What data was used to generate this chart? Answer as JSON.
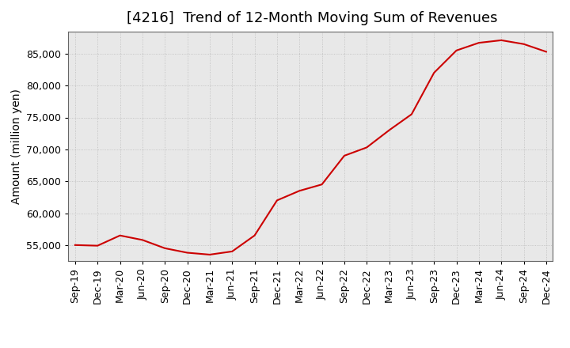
{
  "title": "[4216]  Trend of 12-Month Moving Sum of Revenues",
  "ylabel": "Amount (million yen)",
  "line_color": "#cc0000",
  "background_color": "#ffffff",
  "plot_bg_color": "#e8e8e8",
  "grid_color": "#bbbbbb",
  "x_labels": [
    "Sep-19",
    "Dec-19",
    "Mar-20",
    "Jun-20",
    "Sep-20",
    "Dec-20",
    "Mar-21",
    "Jun-21",
    "Sep-21",
    "Dec-21",
    "Mar-22",
    "Jun-22",
    "Sep-22",
    "Dec-22",
    "Mar-23",
    "Jun-23",
    "Sep-23",
    "Dec-23",
    "Mar-24",
    "Jun-24",
    "Sep-24",
    "Dec-24"
  ],
  "x_values": [
    0,
    1,
    2,
    3,
    4,
    5,
    6,
    7,
    8,
    9,
    10,
    11,
    12,
    13,
    14,
    15,
    16,
    17,
    18,
    19,
    20,
    21
  ],
  "y_values": [
    55000,
    54900,
    56500,
    55800,
    54500,
    53800,
    53500,
    54000,
    56500,
    62000,
    63500,
    64500,
    69000,
    70300,
    73000,
    75500,
    82000,
    85500,
    86700,
    87100,
    86500,
    85300
  ],
  "ylim": [
    52500,
    88500
  ],
  "yticks": [
    55000,
    60000,
    65000,
    70000,
    75000,
    80000,
    85000
  ],
  "title_fontsize": 13,
  "axis_fontsize": 10,
  "tick_fontsize": 9
}
